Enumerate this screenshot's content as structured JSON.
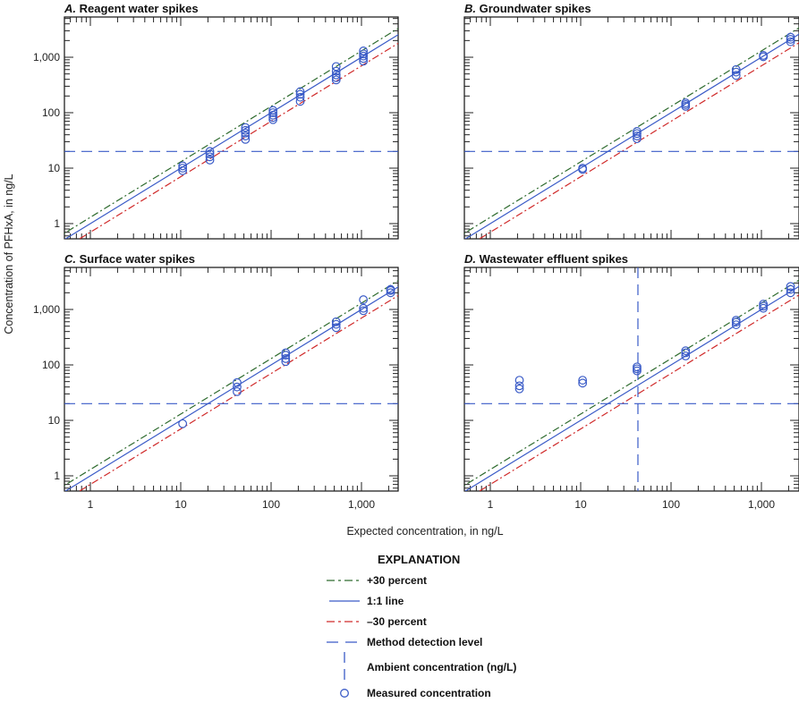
{
  "y_axis_label": "Concentration of PFHxA, in ng/L",
  "x_axis_label": "Expected concentration, in ng/L",
  "legend": {
    "title": "EXPLANATION",
    "items": [
      {
        "label": "+30 percent",
        "style": "dashdot",
        "color": "#2e6b2e"
      },
      {
        "label": "1:1 line",
        "style": "solid",
        "color": "#3a5bc7"
      },
      {
        "label": "–30 percent",
        "style": "dashdot",
        "color": "#d02a2a"
      },
      {
        "label": "Method detection level",
        "style": "dashed",
        "color": "#3a5bc7"
      },
      {
        "label": "Ambient concentration (ng/L)",
        "style": "vdashed",
        "color": "#3a5bc7"
      },
      {
        "label": "Measured concentration",
        "style": "circle",
        "color": "#3a5bc7"
      }
    ]
  },
  "chart_data": [
    {
      "type": "scatter",
      "title_letter": "A.",
      "title": "Reagent water spikes",
      "xscale": "log",
      "yscale": "log",
      "xlim": [
        0.52,
        2540
      ],
      "ylim": [
        0.52,
        3900
      ],
      "xticks": [
        "1",
        "10",
        "100",
        "1,000"
      ],
      "yticks": [
        "1",
        "10",
        "100",
        "1,000"
      ],
      "method_detection_level": 20,
      "ambient_concentration": null,
      "points": [
        [
          10.5,
          9
        ],
        [
          10.5,
          10
        ],
        [
          10.5,
          11
        ],
        [
          21,
          14
        ],
        [
          21,
          16
        ],
        [
          21,
          18
        ],
        [
          21,
          20
        ],
        [
          52,
          33
        ],
        [
          52,
          38
        ],
        [
          52,
          43
        ],
        [
          52,
          48
        ],
        [
          52,
          54
        ],
        [
          105,
          75
        ],
        [
          105,
          82
        ],
        [
          105,
          90
        ],
        [
          105,
          100
        ],
        [
          105,
          110
        ],
        [
          210,
          160
        ],
        [
          210,
          190
        ],
        [
          210,
          215
        ],
        [
          210,
          240
        ],
        [
          525,
          390
        ],
        [
          525,
          430
        ],
        [
          525,
          480
        ],
        [
          525,
          560
        ],
        [
          525,
          680
        ],
        [
          1050,
          850
        ],
        [
          1050,
          950
        ],
        [
          1050,
          1050
        ],
        [
          1050,
          1150
        ],
        [
          1050,
          1300
        ]
      ]
    },
    {
      "type": "scatter",
      "title_letter": "B.",
      "title": "Groundwater spikes",
      "xscale": "log",
      "yscale": "log",
      "xlim": [
        0.52,
        2540
      ],
      "ylim": [
        0.52,
        3900
      ],
      "xticks": [
        "1",
        "10",
        "100",
        "1,000"
      ],
      "yticks": [
        "1",
        "10",
        "100",
        "1,000"
      ],
      "method_detection_level": 20,
      "ambient_concentration": null,
      "points": [
        [
          10.5,
          9.5
        ],
        [
          10.5,
          10
        ],
        [
          42,
          34
        ],
        [
          42,
          38
        ],
        [
          42,
          42
        ],
        [
          42,
          46
        ],
        [
          145,
          130
        ],
        [
          145,
          140
        ],
        [
          145,
          150
        ],
        [
          525,
          470
        ],
        [
          525,
          540
        ],
        [
          525,
          600
        ],
        [
          1050,
          1020
        ],
        [
          1050,
          1080
        ],
        [
          2100,
          1900
        ],
        [
          2100,
          2100
        ],
        [
          2100,
          2300
        ]
      ]
    },
    {
      "type": "scatter",
      "title_letter": "C.",
      "title": "Surface water spikes",
      "xscale": "log",
      "yscale": "log",
      "xlim": [
        0.52,
        2540
      ],
      "ylim": [
        0.52,
        3900
      ],
      "xticks": [
        "1",
        "10",
        "100",
        "1,000"
      ],
      "yticks": [
        "1",
        "10",
        "100",
        "1,000"
      ],
      "method_detection_level": 20,
      "ambient_concentration": null,
      "points": [
        [
          10.5,
          8.7
        ],
        [
          42,
          33
        ],
        [
          42,
          40
        ],
        [
          42,
          48
        ],
        [
          145,
          115
        ],
        [
          145,
          130
        ],
        [
          145,
          150
        ],
        [
          145,
          165
        ],
        [
          525,
          470
        ],
        [
          525,
          540
        ],
        [
          525,
          600
        ],
        [
          1050,
          950
        ],
        [
          1050,
          1050
        ],
        [
          1050,
          1500
        ],
        [
          2100,
          2000
        ],
        [
          2100,
          2200
        ],
        [
          2100,
          2300
        ]
      ]
    },
    {
      "type": "scatter",
      "title_letter": "D.",
      "title": "Wastewater effluent spikes",
      "xscale": "log",
      "yscale": "log",
      "xlim": [
        0.52,
        2540
      ],
      "ylim": [
        0.52,
        3900
      ],
      "xticks": [
        "1",
        "10",
        "100",
        "1,000"
      ],
      "yticks": [
        "1",
        "10",
        "100",
        "1,000"
      ],
      "method_detection_level": 20,
      "ambient_concentration": 43,
      "points": [
        [
          2.1,
          37
        ],
        [
          2.1,
          42
        ],
        [
          2.1,
          53
        ],
        [
          10.5,
          47
        ],
        [
          10.5,
          53
        ],
        [
          42,
          78
        ],
        [
          42,
          85
        ],
        [
          42,
          92
        ],
        [
          145,
          145
        ],
        [
          145,
          165
        ],
        [
          145,
          180
        ],
        [
          525,
          530
        ],
        [
          525,
          590
        ],
        [
          525,
          640
        ],
        [
          1050,
          1050
        ],
        [
          1050,
          1150
        ],
        [
          1050,
          1250
        ],
        [
          2100,
          2000
        ],
        [
          2100,
          2300
        ],
        [
          2100,
          2600
        ]
      ]
    }
  ]
}
